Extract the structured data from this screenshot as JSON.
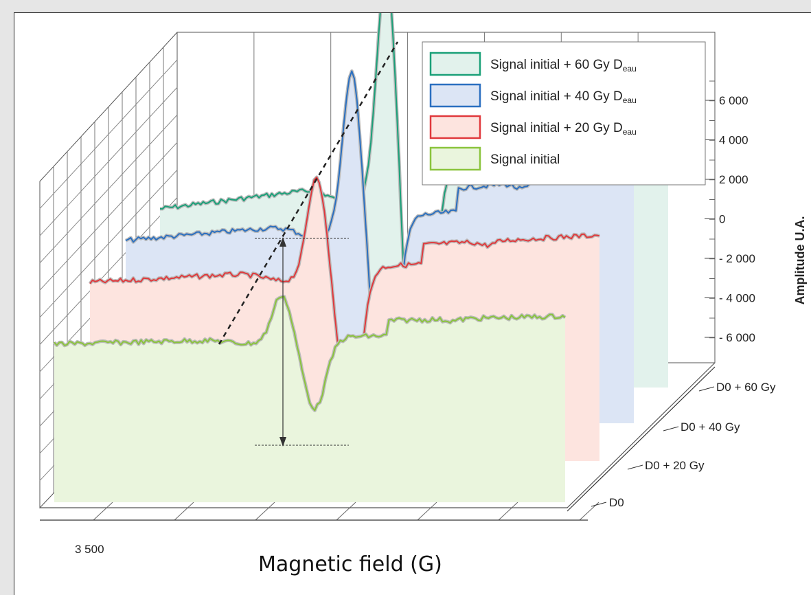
{
  "chart_data": {
    "type": "line",
    "subtype": "3d-waterfall",
    "xlabel": "Magnetic field (G)",
    "x_tick_labels": [
      "3 500"
    ],
    "zlabel": "Amplitude U.A.",
    "z_ticks": [
      6000,
      4000,
      2000,
      0,
      -2000,
      -4000,
      -6000
    ],
    "z_tick_labels": [
      "6 000",
      "4 000",
      "2 000",
      "0",
      "- 2 000",
      "- 4 000",
      "- 6 000"
    ],
    "depth_categories": [
      "D0",
      "D0 + 20 Gy",
      "D0 + 40 Gy",
      "D0 + 60 Gy"
    ],
    "legend": {
      "placement": "top-right",
      "entries": [
        {
          "main": "Signal initial + 60 Gy D",
          "sub": "eau",
          "color": "#1aa078",
          "fill": "#e2f2ec"
        },
        {
          "main": "Signal initial + 40 Gy D",
          "sub": "eau",
          "color": "#2a6fc0",
          "fill": "#dce5f5"
        },
        {
          "main": "Signal initial + 20 Gy D",
          "sub": "eau",
          "color": "#e0383c",
          "fill": "#fde4df"
        },
        {
          "main": "Signal initial",
          "sub": "",
          "color": "#8ac43c",
          "fill": "#eaf5dd"
        }
      ]
    },
    "series": [
      {
        "name": "Signal initial + 60 Gy D eau",
        "category": "D0 + 60 Gy",
        "color": "#1aa078",
        "fill": "#e2f2ec",
        "peak_to_peak_relative": 2.7
      },
      {
        "name": "Signal initial + 40 Gy D eau",
        "category": "D0 + 40 Gy",
        "color": "#2a6fc0",
        "fill": "#dce5f5",
        "peak_to_peak_relative": 2.2
      },
      {
        "name": "Signal initial + 20 Gy D eau",
        "category": "D0 + 20 Gy",
        "color": "#e0383c",
        "fill": "#fde4df",
        "peak_to_peak_relative": 1.7
      },
      {
        "name": "Signal initial",
        "category": "D0",
        "color": "#8ac43c",
        "fill": "#eaf5dd",
        "peak_to_peak_relative": 1.0
      }
    ],
    "annotations": [
      "peak-to-peak amplitude arrow on Signal initial",
      "dashed trend line through peak maxima"
    ],
    "grid": true
  }
}
